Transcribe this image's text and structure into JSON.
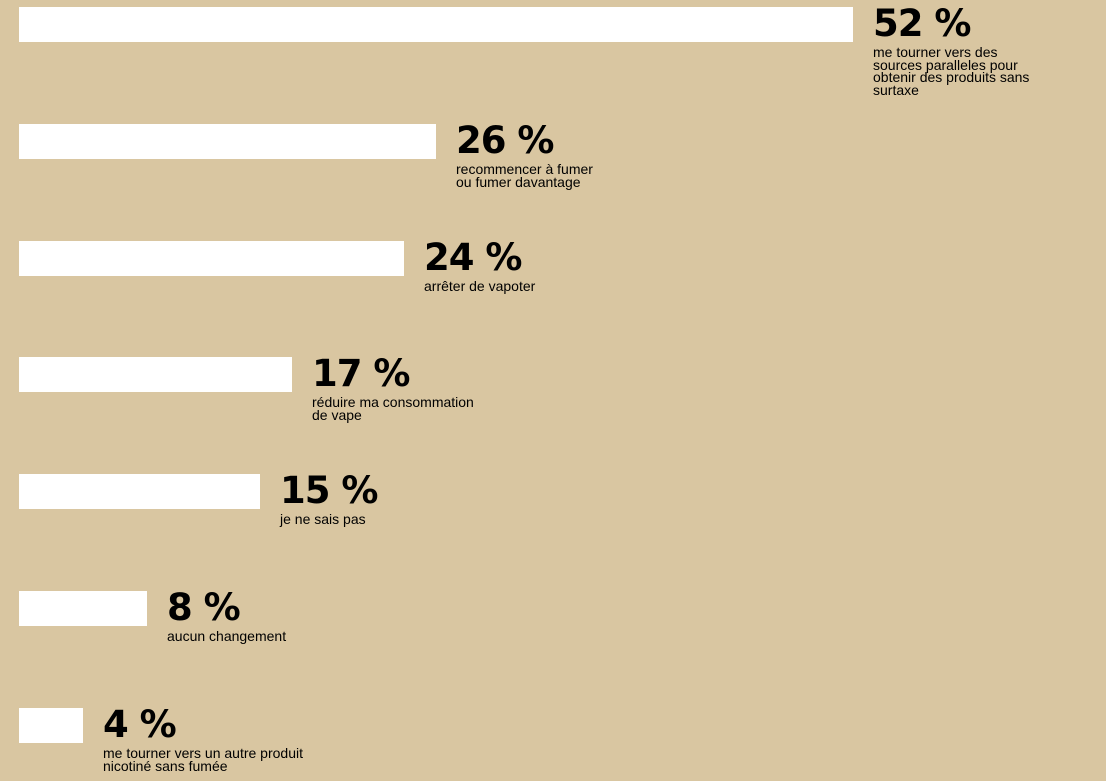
{
  "colors": {
    "background": "#d9c6a1",
    "bar": "#ffffff",
    "text": "#000000"
  },
  "chart_data": {
    "type": "bar",
    "orientation": "horizontal",
    "categories": [
      "me tourner vers des sources paralleles pour obtenir des produits sans surtaxe",
      "recommencer à fumer ou fumer davantage",
      "arrêter de vapoter",
      "réduire ma consommation de vape",
      "je ne sais pas",
      "aucun changement",
      "me tourner vers un autre produit nicotiné sans fumée"
    ],
    "values": [
      52,
      26,
      24,
      17,
      15,
      8,
      4
    ],
    "unit": "%",
    "value_labels": [
      "52 %",
      "26 %",
      "24 %",
      "17 %",
      "15 %",
      "8 %",
      "4 %"
    ],
    "description_lines": [
      [
        "me tourner vers des",
        "sources paralleles pour",
        "obtenir des produits sans",
        "surtaxe"
      ],
      [
        "recommencer à fumer",
        "ou fumer davantage"
      ],
      [
        "arrêter de vapoter"
      ],
      [
        "réduire ma consommation",
        "de vape"
      ],
      [
        "je ne sais pas"
      ],
      [
        "aucun changement"
      ],
      [
        "me tourner vers un autre produit",
        "nicotiné sans fumée"
      ]
    ],
    "grid": false,
    "legend": "none",
    "axes": "none"
  }
}
